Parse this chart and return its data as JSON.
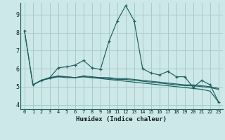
{
  "xlabel": "Humidex (Indice chaleur)",
  "bg_color": "#cce8e8",
  "grid_color": "#aacaca",
  "line_color": "#206060",
  "xlim": [
    -0.5,
    23.5
  ],
  "ylim": [
    3.75,
    9.65
  ],
  "yticks": [
    4,
    5,
    6,
    7,
    8,
    9
  ],
  "xticks": [
    0,
    1,
    2,
    3,
    4,
    5,
    6,
    7,
    8,
    9,
    10,
    11,
    12,
    13,
    14,
    15,
    16,
    17,
    18,
    19,
    20,
    21,
    22,
    23
  ],
  "series": [
    {
      "x": [
        0,
        1,
        2,
        3,
        4,
        5,
        6,
        7,
        8,
        9,
        10,
        11,
        12,
        13,
        14,
        15,
        16,
        17,
        18,
        19,
        20,
        21,
        22,
        23
      ],
      "y": [
        8.1,
        5.1,
        5.35,
        5.5,
        6.05,
        6.1,
        6.2,
        6.45,
        6.05,
        5.95,
        7.5,
        8.65,
        9.5,
        8.65,
        6.0,
        5.75,
        5.65,
        5.85,
        5.55,
        5.55,
        4.95,
        5.35,
        5.1,
        4.15
      ],
      "marker": true
    },
    {
      "x": [
        0,
        1,
        2,
        3,
        4,
        5,
        6,
        7,
        8,
        9,
        10,
        11,
        12,
        13,
        14,
        15,
        16,
        17,
        18,
        19,
        20,
        21,
        22,
        23
      ],
      "y": [
        8.1,
        5.1,
        5.35,
        5.45,
        5.55,
        5.55,
        5.5,
        5.55,
        5.5,
        5.45,
        5.4,
        5.35,
        5.3,
        5.25,
        5.2,
        5.15,
        5.1,
        5.05,
        5.0,
        4.95,
        4.9,
        4.85,
        4.75,
        4.15
      ],
      "marker": false
    },
    {
      "x": [
        1,
        2,
        3,
        4,
        5,
        6,
        7,
        8,
        9,
        10,
        11,
        12,
        13,
        14,
        15,
        16,
        17,
        18,
        19,
        20,
        21,
        22,
        23
      ],
      "y": [
        5.1,
        5.35,
        5.5,
        5.6,
        5.55,
        5.5,
        5.6,
        5.55,
        5.5,
        5.45,
        5.4,
        5.4,
        5.35,
        5.3,
        5.25,
        5.2,
        5.15,
        5.1,
        5.05,
        5.05,
        5.0,
        4.95,
        4.85
      ],
      "marker": false
    },
    {
      "x": [
        1,
        2,
        3,
        4,
        5,
        6,
        7,
        8,
        9,
        10,
        11,
        12,
        13,
        14,
        15,
        16,
        17,
        18,
        19,
        20,
        21,
        22,
        23
      ],
      "y": [
        5.1,
        5.35,
        5.5,
        5.55,
        5.5,
        5.5,
        5.55,
        5.5,
        5.5,
        5.5,
        5.45,
        5.45,
        5.4,
        5.35,
        5.3,
        5.25,
        5.2,
        5.15,
        5.1,
        5.1,
        5.05,
        5.0,
        4.9
      ],
      "marker": false
    }
  ]
}
